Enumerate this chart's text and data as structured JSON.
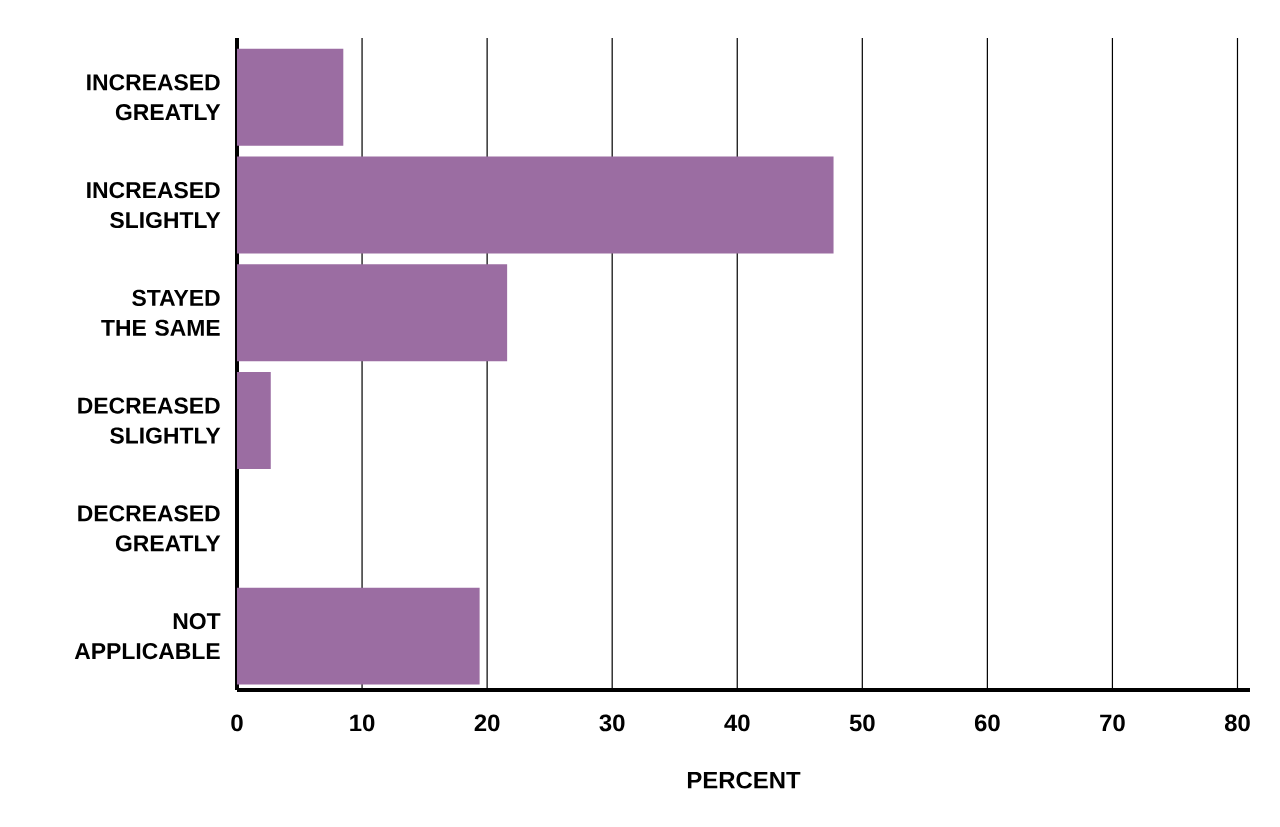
{
  "chart_data": {
    "type": "bar",
    "orientation": "horizontal",
    "categories": [
      "INCREASED GREATLY",
      "INCREASED SLIGHTLY",
      "STAYED THE SAME",
      "DECREASED SLIGHTLY",
      "DECREASED GREATLY",
      "NOT APPLICABLE"
    ],
    "values": [
      8.5,
      47.7,
      21.6,
      2.7,
      0,
      19.4
    ],
    "color": "#9b6da2",
    "xlim": [
      0,
      81
    ],
    "xticks": [
      0,
      10,
      20,
      30,
      40,
      50,
      60,
      70,
      80
    ],
    "xlabel": "PERCENT",
    "grid": "x"
  }
}
